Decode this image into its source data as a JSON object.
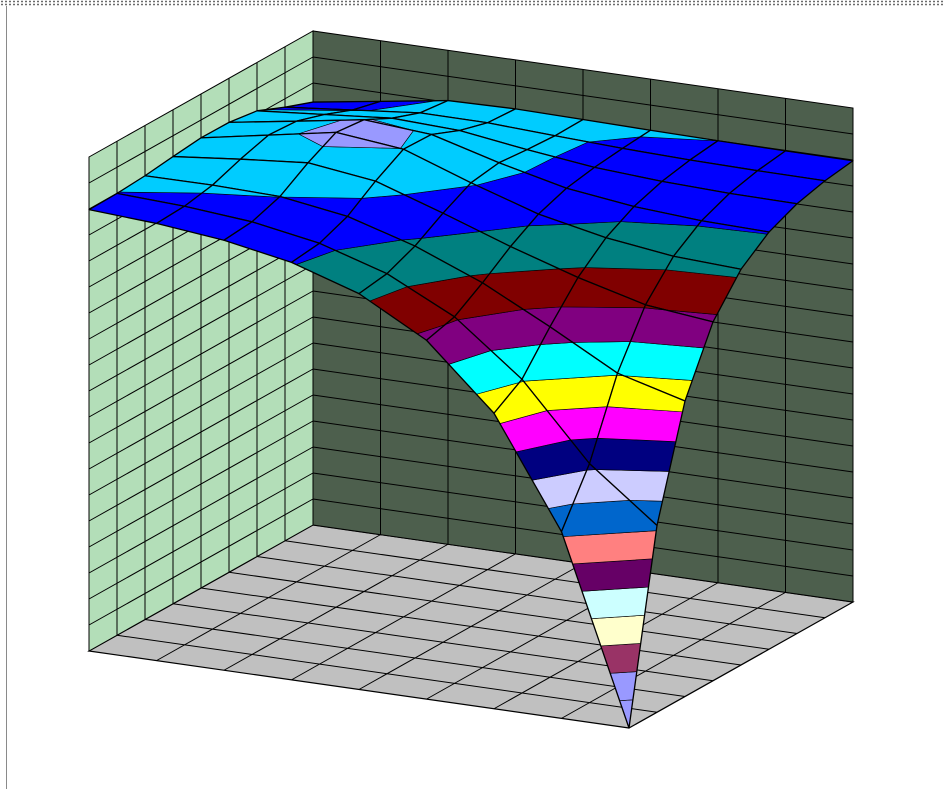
{
  "chart_data": {
    "type": "surface",
    "title": "",
    "xlabel": "",
    "ylabel": "",
    "zlabel": "",
    "legend": "none",
    "grid": true,
    "grid_size": [
      9,
      9
    ],
    "x": [
      0,
      1,
      2,
      3,
      4,
      5,
      6,
      7,
      8
    ],
    "y": [
      0,
      1,
      2,
      3,
      4,
      5,
      6,
      7,
      8
    ],
    "z_range": [
      0,
      19
    ],
    "color_bands": [
      "#9999FF",
      "#9999FF",
      "#993366",
      "#FFFFCC",
      "#CCFFFF",
      "#660066",
      "#FF8080",
      "#0066CC",
      "#CCCCFF",
      "#000080",
      "#FF00FF",
      "#FFFF00",
      "#00FFFF",
      "#800080",
      "#800000",
      "#008080",
      "#0000FF",
      "#00CCFF",
      "#9999FF"
    ],
    "colors": {
      "floor": "#C0C0C0",
      "left_wall": "#B3DEB8",
      "back_wall": "#4D5F4D",
      "grid_line": "#000000"
    }
  }
}
